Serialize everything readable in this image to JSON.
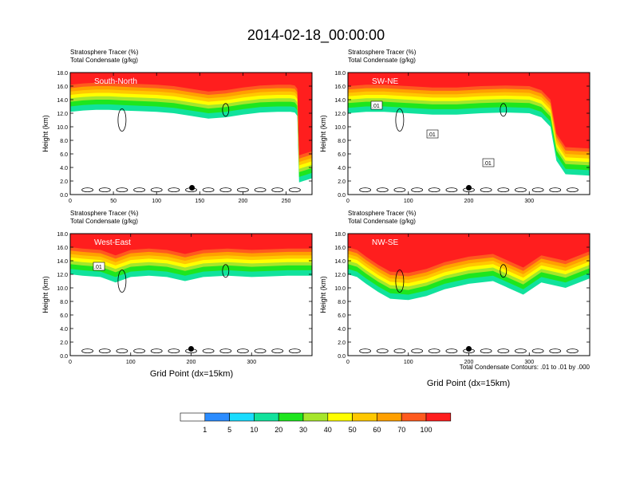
{
  "figure": {
    "title": "2014-02-18_00:00:00",
    "field_label": "Stratosphere Tracer   (%)",
    "contour_label": "Total Condensate   (g/kg)",
    "contour_note": "Total Condensate Contours: .01 to .01 by .000",
    "xlabel": "Grid Point (dx=15km)",
    "ylabel": "Height (km)"
  },
  "colors": {
    "levels": [
      "#ffffff",
      "#2b8cff",
      "#19dcff",
      "#11e29c",
      "#1ee61e",
      "#a6e62b",
      "#ffff00",
      "#ffc800",
      "#ffa000",
      "#ff5a1e",
      "#ff1e1e"
    ],
    "contour": "#000000",
    "marker": "#000000"
  },
  "colorbar": {
    "labels": [
      "1",
      "5",
      "10",
      "20",
      "30",
      "40",
      "50",
      "60",
      "70",
      "100"
    ]
  },
  "chart_data": [
    {
      "type": "heatmap",
      "panel_label": "South-North",
      "title": "Stratosphere Tracer (%)",
      "subtitle": "Total Condensate (g/kg)",
      "xlabel": "",
      "ylabel": "Height (km)",
      "xlim": [
        0,
        280
      ],
      "ylim": [
        0,
        18
      ],
      "xticks": [
        0,
        50,
        100,
        150,
        200,
        250
      ],
      "yticks": [
        0.0,
        2.0,
        4.0,
        6.0,
        8.0,
        10.0,
        12.0,
        14.0,
        16.0,
        18.0
      ],
      "tracer_top_km": [
        16.2,
        16.4,
        16.5,
        16.5,
        16.4,
        16.3,
        16.2,
        16.0,
        15.6,
        15.2,
        15.4,
        15.8,
        16.1,
        16.2,
        16.2,
        16.1,
        15.6,
        5.8,
        6.4
      ],
      "tracer_top_x": [
        0,
        15,
        30,
        45,
        60,
        80,
        100,
        120,
        140,
        160,
        180,
        200,
        220,
        240,
        255,
        260,
        263,
        265,
        280
      ],
      "contour_labels": [],
      "marker": {
        "x": 141,
        "y_km": 1.0
      }
    },
    {
      "type": "heatmap",
      "panel_label": "SW-NE",
      "title": "Stratosphere Tracer (%)",
      "subtitle": "Total Condensate (g/kg)",
      "xlabel": "",
      "ylabel": "Height (km)",
      "xlim": [
        0,
        400
      ],
      "ylim": [
        0,
        18
      ],
      "xticks": [
        0,
        100,
        200,
        300
      ],
      "yticks": [
        0.0,
        2.0,
        4.0,
        6.0,
        8.0,
        10.0,
        12.0,
        14.0,
        16.0,
        18.0
      ],
      "tracer_top_km": [
        16.0,
        16.2,
        16.2,
        16.0,
        15.8,
        15.8,
        16.0,
        16.1,
        16.0,
        15.4,
        14.0,
        9.0,
        7.0,
        6.8
      ],
      "tracer_top_x": [
        0,
        30,
        60,
        100,
        140,
        180,
        220,
        260,
        300,
        320,
        335,
        345,
        360,
        400
      ],
      "contour_labels": [
        ".01",
        ".01",
        ".01"
      ],
      "marker": {
        "x": 200,
        "y_km": 1.0
      }
    },
    {
      "type": "heatmap",
      "panel_label": "West-East",
      "title": "Stratosphere Tracer (%)",
      "subtitle": "Total Condensate (g/kg)",
      "xlabel": "Grid Point (dx=15km)",
      "ylabel": "Height (km)",
      "xlim": [
        0,
        400
      ],
      "ylim": [
        0,
        18
      ],
      "xticks": [
        0,
        100,
        200,
        300
      ],
      "yticks": [
        0.0,
        2.0,
        4.0,
        6.0,
        8.0,
        10.0,
        12.0,
        14.0,
        16.0,
        18.0
      ],
      "tracer_top_km": [
        16.0,
        15.8,
        15.6,
        14.8,
        15.6,
        15.8,
        15.6,
        15.0,
        15.6,
        15.8,
        15.6,
        15.7,
        15.8,
        15.8
      ],
      "tracer_top_x": [
        0,
        20,
        50,
        75,
        100,
        130,
        160,
        190,
        220,
        260,
        300,
        330,
        360,
        400
      ],
      "contour_labels": [
        ".01"
      ],
      "marker": {
        "x": 200,
        "y_km": 1.0
      }
    },
    {
      "type": "heatmap",
      "panel_label": "NW-SE",
      "title": "Stratosphere Tracer (%)",
      "subtitle": "Total Condensate (g/kg)",
      "xlabel": "Grid Point (dx=15km)",
      "ylabel": "Height (km)",
      "xlim": [
        0,
        400
      ],
      "ylim": [
        0,
        18
      ],
      "xticks": [
        0,
        100,
        200,
        300
      ],
      "yticks": [
        0.0,
        2.0,
        4.0,
        6.0,
        8.0,
        10.0,
        12.0,
        14.0,
        16.0,
        18.0
      ],
      "tracer_top_km": [
        16.0,
        15.6,
        14.6,
        13.4,
        12.4,
        12.2,
        12.8,
        13.8,
        14.6,
        15.0,
        14.2,
        13.0,
        14.8,
        14.0,
        15.4
      ],
      "tracer_top_x": [
        0,
        15,
        30,
        50,
        70,
        100,
        130,
        160,
        200,
        240,
        260,
        290,
        320,
        360,
        400
      ],
      "contour_labels": [],
      "marker": {
        "x": 200,
        "y_km": 1.0
      }
    }
  ]
}
